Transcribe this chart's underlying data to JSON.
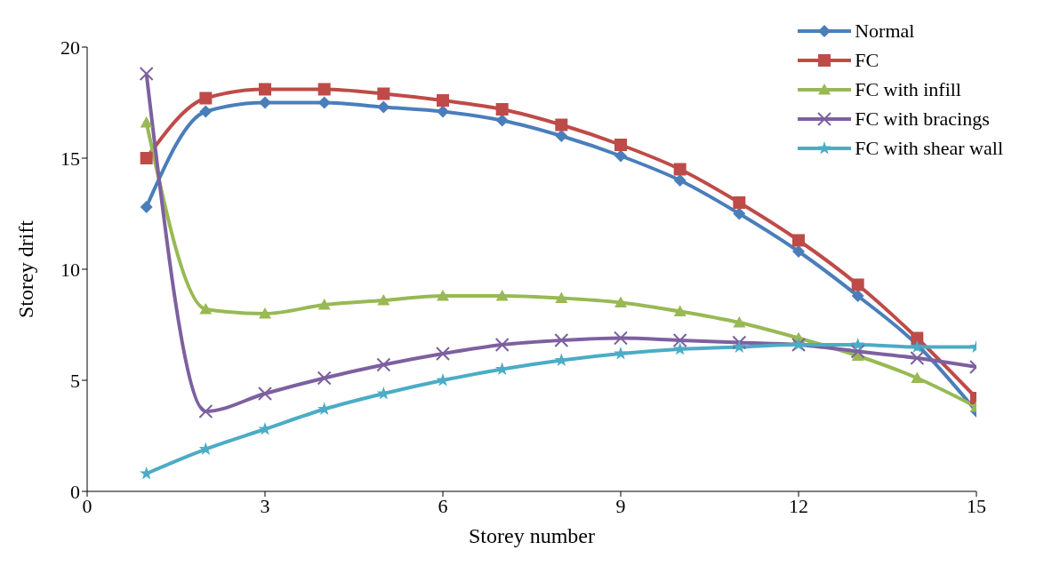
{
  "chart_data": {
    "type": "line",
    "xlabel": "Storey number",
    "ylabel": "Storey drift",
    "x": [
      1,
      2,
      3,
      4,
      5,
      6,
      7,
      8,
      9,
      10,
      11,
      12,
      13,
      14,
      15
    ],
    "xlim": [
      0,
      15
    ],
    "xticks": [
      0,
      3,
      6,
      9,
      12,
      15
    ],
    "ylim": [
      0,
      20
    ],
    "yticks": [
      0,
      5,
      10,
      15,
      20
    ],
    "grid": false,
    "legend": "top right",
    "line_style": "solid",
    "series": [
      {
        "name": "Normal",
        "color": "#4a7ebb",
        "marker": "diamond",
        "values": [
          12.8,
          17.1,
          17.5,
          17.5,
          17.3,
          17.1,
          16.7,
          16.0,
          15.1,
          14.0,
          12.5,
          10.8,
          8.8,
          6.6,
          3.6
        ]
      },
      {
        "name": "FC",
        "color": "#be4b48",
        "marker": "square",
        "values": [
          15.0,
          17.7,
          18.1,
          18.1,
          17.9,
          17.6,
          17.2,
          16.5,
          15.6,
          14.5,
          13.0,
          11.3,
          9.3,
          6.9,
          4.2
        ]
      },
      {
        "name": "FC with infill",
        "color": "#98b954",
        "marker": "triangle",
        "values": [
          16.6,
          8.2,
          8.0,
          8.4,
          8.6,
          8.8,
          8.8,
          8.7,
          8.5,
          8.1,
          7.6,
          6.9,
          6.1,
          5.1,
          3.8
        ]
      },
      {
        "name": "FC with bracings",
        "color": "#7d60a0",
        "marker": "cross",
        "values": [
          18.8,
          3.6,
          4.4,
          5.1,
          5.7,
          6.2,
          6.6,
          6.8,
          6.9,
          6.8,
          6.7,
          6.6,
          6.3,
          6.0,
          5.6
        ]
      },
      {
        "name": "FC with shear wall",
        "color": "#4bacc6",
        "marker": "star",
        "values": [
          0.8,
          1.9,
          2.8,
          3.7,
          4.4,
          5.0,
          5.5,
          5.9,
          6.2,
          6.4,
          6.5,
          6.6,
          6.6,
          6.5,
          6.5
        ]
      }
    ]
  }
}
